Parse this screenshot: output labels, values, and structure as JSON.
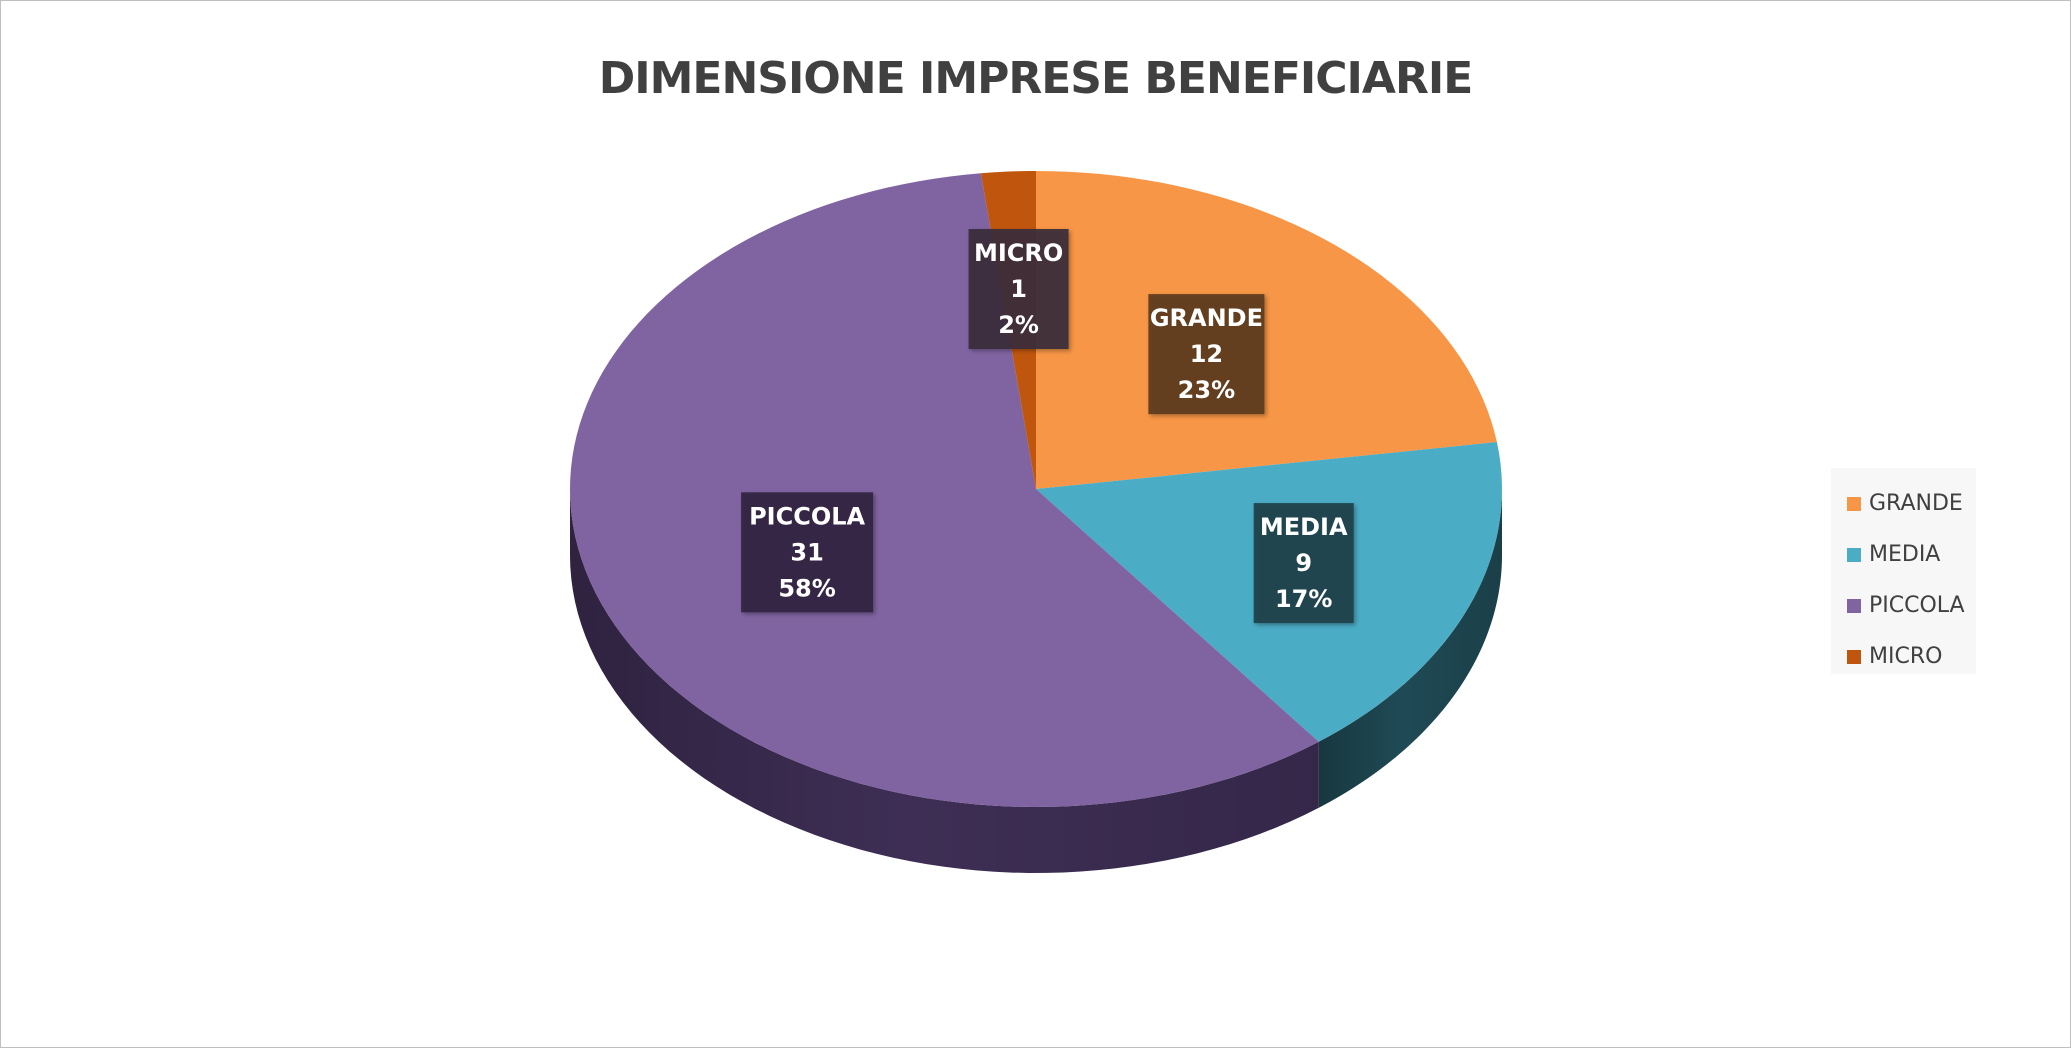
{
  "chart_data": {
    "type": "pie",
    "title": "DIMENSIONE IMPRESE BENEFICIARIE",
    "categories": [
      "GRANDE",
      "MEDIA",
      "PICCOLA",
      "MICRO"
    ],
    "values": [
      12,
      9,
      31,
      1
    ],
    "percent_labels": [
      "23%",
      "17%",
      "58%",
      "2%"
    ],
    "colors": [
      "#F79646",
      "#4BACC6",
      "#8064A2",
      "#C0560E"
    ],
    "side_colors": [
      "#9E5A22",
      "#1F4A55",
      "#3E2E55",
      "#7A3306"
    ],
    "label_box_colors": [
      "#5C3A1E",
      "#1E3F48",
      "#312440",
      "#3A2A3A"
    ],
    "start_angle_deg": 0,
    "direction": "clockwise",
    "style": "3d",
    "legend_position": "right"
  }
}
